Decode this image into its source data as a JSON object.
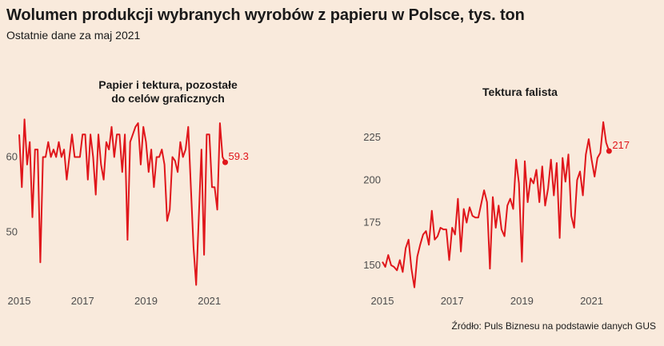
{
  "title": "Wolumen produkcji wybranych wyrobów z papieru w Polsce, tys. ton",
  "subtitle": "Ostatnie dane za maj 2021",
  "source": "Źródło: Puls Biznesu na podstawie danych GUS",
  "colors": {
    "line": "#e0161b",
    "background": "#f9eadc",
    "text": "#1a1a1a",
    "axis_text": "#4d4d4d"
  },
  "chart_data": [
    {
      "type": "line",
      "title_lines": [
        "Papier i tektura, pozostałe",
        "do celów graficznych"
      ],
      "xlabel": "",
      "ylabel": "",
      "grid": false,
      "x_start": "2015-01",
      "x_end": "2021-05",
      "frequency": "monthly",
      "xlim": [
        2015,
        2022.8
      ],
      "ylim": [
        42,
        66
      ],
      "x_ticks": [
        2015,
        2017,
        2019,
        2021
      ],
      "x_tick_labels": [
        "2015",
        "2017",
        "2019",
        "2021"
      ],
      "y_ticks": [
        50,
        60
      ],
      "y_tick_labels": [
        "50",
        "60"
      ],
      "last_value_label": "59.3",
      "series": [
        {
          "values": [
            63.0,
            56.0,
            65.0,
            59.0,
            62.0,
            52.0,
            61.0,
            61.0,
            46.0,
            60.0,
            60.0,
            62.0,
            60.0,
            61.0,
            60.0,
            62.0,
            60.0,
            61.0,
            57.0,
            60.0,
            63.0,
            60.0,
            60.0,
            60.0,
            63.0,
            63.0,
            57.0,
            63.0,
            60.0,
            55.0,
            63.0,
            59.0,
            57.0,
            62.0,
            61.0,
            64.0,
            60.0,
            63.0,
            63.0,
            58.0,
            63.0,
            49.0,
            62.0,
            63.0,
            64.0,
            64.5,
            59.0,
            64.0,
            62.0,
            58.0,
            61.0,
            56.0,
            60.0,
            60.0,
            61.0,
            59.0,
            51.5,
            53.0,
            60.0,
            59.5,
            58.0,
            62.0,
            60.0,
            61.0,
            64.0,
            56.0,
            48.0,
            43.0,
            52.0,
            61.0,
            47.0,
            63.0,
            63.0,
            56.0,
            56.0,
            53.0,
            64.5,
            60.0,
            59.3
          ]
        }
      ]
    },
    {
      "type": "line",
      "title_lines": [
        "Tektura falista"
      ],
      "xlabel": "",
      "ylabel": "",
      "grid": false,
      "x_start": "2015-01",
      "x_end": "2021-05",
      "frequency": "monthly",
      "xlim": [
        2015,
        2022.8
      ],
      "ylim": [
        134,
        240
      ],
      "x_ticks": [
        2015,
        2017,
        2019,
        2021
      ],
      "x_tick_labels": [
        "2015",
        "2017",
        "2019",
        "2021"
      ],
      "y_ticks": [
        150,
        175,
        200,
        225
      ],
      "y_tick_labels": [
        "150",
        "175",
        "200",
        "225"
      ],
      "last_value_label": "217",
      "series": [
        {
          "values": [
            152,
            149,
            156,
            150,
            149,
            147,
            153,
            146,
            160,
            165,
            148,
            137,
            155,
            162,
            168,
            170,
            162,
            182,
            165,
            167,
            172,
            171,
            171,
            153,
            172,
            168,
            189,
            158,
            183,
            175,
            184,
            179,
            178,
            178,
            186,
            194,
            187,
            148,
            190,
            172,
            185,
            171,
            167,
            185,
            189,
            183,
            212,
            198,
            152,
            211,
            187,
            201,
            198,
            206,
            187,
            208,
            185,
            195,
            212,
            191,
            210,
            166,
            213,
            199,
            215,
            179,
            172,
            200,
            205,
            191,
            215,
            224,
            212,
            202,
            213,
            216,
            234,
            222,
            217
          ]
        }
      ]
    }
  ]
}
